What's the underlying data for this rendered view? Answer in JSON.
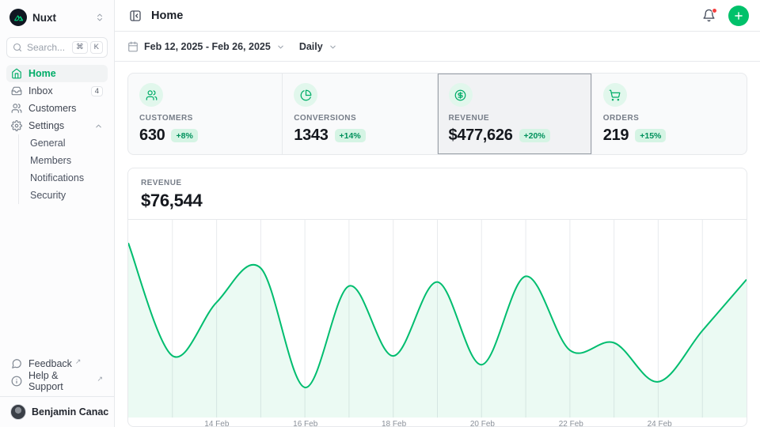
{
  "app": {
    "brand": "Nuxt",
    "accent_color": "#00c16a"
  },
  "sidebar": {
    "team": "Nuxt",
    "search": {
      "placeholder": "Search...",
      "shortcuts": [
        "⌘",
        "K"
      ]
    },
    "items": [
      {
        "label": "Home",
        "icon": "home-icon",
        "active": true
      },
      {
        "label": "Inbox",
        "icon": "inbox-icon",
        "badge": "4"
      },
      {
        "label": "Customers",
        "icon": "users-icon"
      },
      {
        "label": "Settings",
        "icon": "gear-icon",
        "expanded": true,
        "children": [
          {
            "label": "General"
          },
          {
            "label": "Members"
          },
          {
            "label": "Notifications"
          },
          {
            "label": "Security"
          }
        ]
      }
    ],
    "footer_links": [
      {
        "label": "Feedback",
        "icon": "message-circle-icon",
        "external_arrow": "↗"
      },
      {
        "label": "Help & Support",
        "icon": "info-circle-icon",
        "external_arrow": "↗"
      }
    ],
    "user": {
      "name": "Benjamin Canac"
    }
  },
  "header": {
    "title": "Home"
  },
  "toolbar": {
    "date_range": "Feb 12, 2025 - Feb 26, 2025",
    "period": "Daily"
  },
  "stats": [
    {
      "label": "CUSTOMERS",
      "value": "630",
      "delta": "+8%",
      "icon": "users-icon",
      "selected": false
    },
    {
      "label": "CONVERSIONS",
      "value": "1343",
      "delta": "+14%",
      "icon": "pie-chart-icon",
      "selected": false
    },
    {
      "label": "REVENUE",
      "value": "$477,626",
      "delta": "+20%",
      "icon": "dollar-circle-icon",
      "selected": true
    },
    {
      "label": "ORDERS",
      "value": "219",
      "delta": "+15%",
      "icon": "cart-icon",
      "selected": false
    }
  ],
  "revenue_panel": {
    "label": "REVENUE",
    "value": "$76,544"
  },
  "chart_data": {
    "type": "area",
    "title": "Revenue (Daily)",
    "x": [
      "12 Feb",
      "13 Feb",
      "14 Feb",
      "15 Feb",
      "16 Feb",
      "17 Feb",
      "18 Feb",
      "19 Feb",
      "20 Feb",
      "21 Feb",
      "22 Feb",
      "23 Feb",
      "24 Feb",
      "25 Feb",
      "26 Feb"
    ],
    "values": [
      9180,
      3250,
      6060,
      7860,
      1580,
      6920,
      3240,
      7130,
      2780,
      7430,
      3540,
      3930,
      1880,
      4570,
      7260
    ],
    "tick_indices": [
      2,
      4,
      6,
      8,
      10,
      12
    ],
    "tick_labels": [
      "14 Feb",
      "16 Feb",
      "18 Feb",
      "20 Feb",
      "22 Feb",
      "24 Feb"
    ],
    "ylim": [
      0,
      10400
    ],
    "grid": "vertical",
    "legend": "none",
    "line_color": "#00bd6f",
    "fill_color": "rgba(0,193,106,0.08)",
    "grid_color": "#e8eaed"
  }
}
